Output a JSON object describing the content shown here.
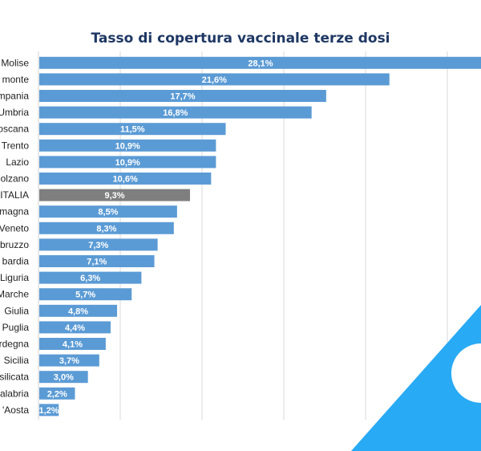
{
  "chart_data": {
    "type": "bar",
    "orientation": "horizontal",
    "title": "Tasso di copertura vaccinale terze dosi",
    "xlabel": "",
    "ylabel": "",
    "grid": true,
    "xlim": [
      0,
      27.3
    ],
    "categories": [
      "Molise",
      "monte",
      "mpania",
      "Umbria",
      "oscana",
      "Trento",
      "Lazio",
      "olzano",
      "ITALIA",
      "magna",
      "Veneto",
      "bruzzo",
      "bardia",
      "Liguria",
      "Marche",
      "Giulia",
      "Puglia",
      "rdegna",
      "Sicilia",
      "silicata",
      "alabria",
      "'Aosta"
    ],
    "values": [
      28.1,
      21.6,
      17.7,
      16.8,
      11.5,
      10.9,
      10.9,
      10.6,
      9.3,
      8.5,
      8.3,
      7.3,
      7.1,
      6.3,
      5.7,
      4.8,
      4.4,
      4.1,
      3.7,
      3.0,
      2.2,
      1.2
    ],
    "value_labels": [
      "28,1%",
      "21,6%",
      "17,7%",
      "16,8%",
      "11,5%",
      "10,9%",
      "10,9%",
      "10,6%",
      "9,3%",
      "8,5%",
      "8,3%",
      "7,3%",
      "7,1%",
      "6,3%",
      "5,7%",
      "4,8%",
      "4,4%",
      "4,1%",
      "3,7%",
      "3,0%",
      "2,2%",
      "1,2%"
    ],
    "highlight_category": "ITALIA",
    "colors": {
      "bar": "#5b9bd5",
      "highlight": "#7f7f7f",
      "grid": "#d9d9d9",
      "title": "#1f3864",
      "decoration": "#29aaf4"
    }
  }
}
